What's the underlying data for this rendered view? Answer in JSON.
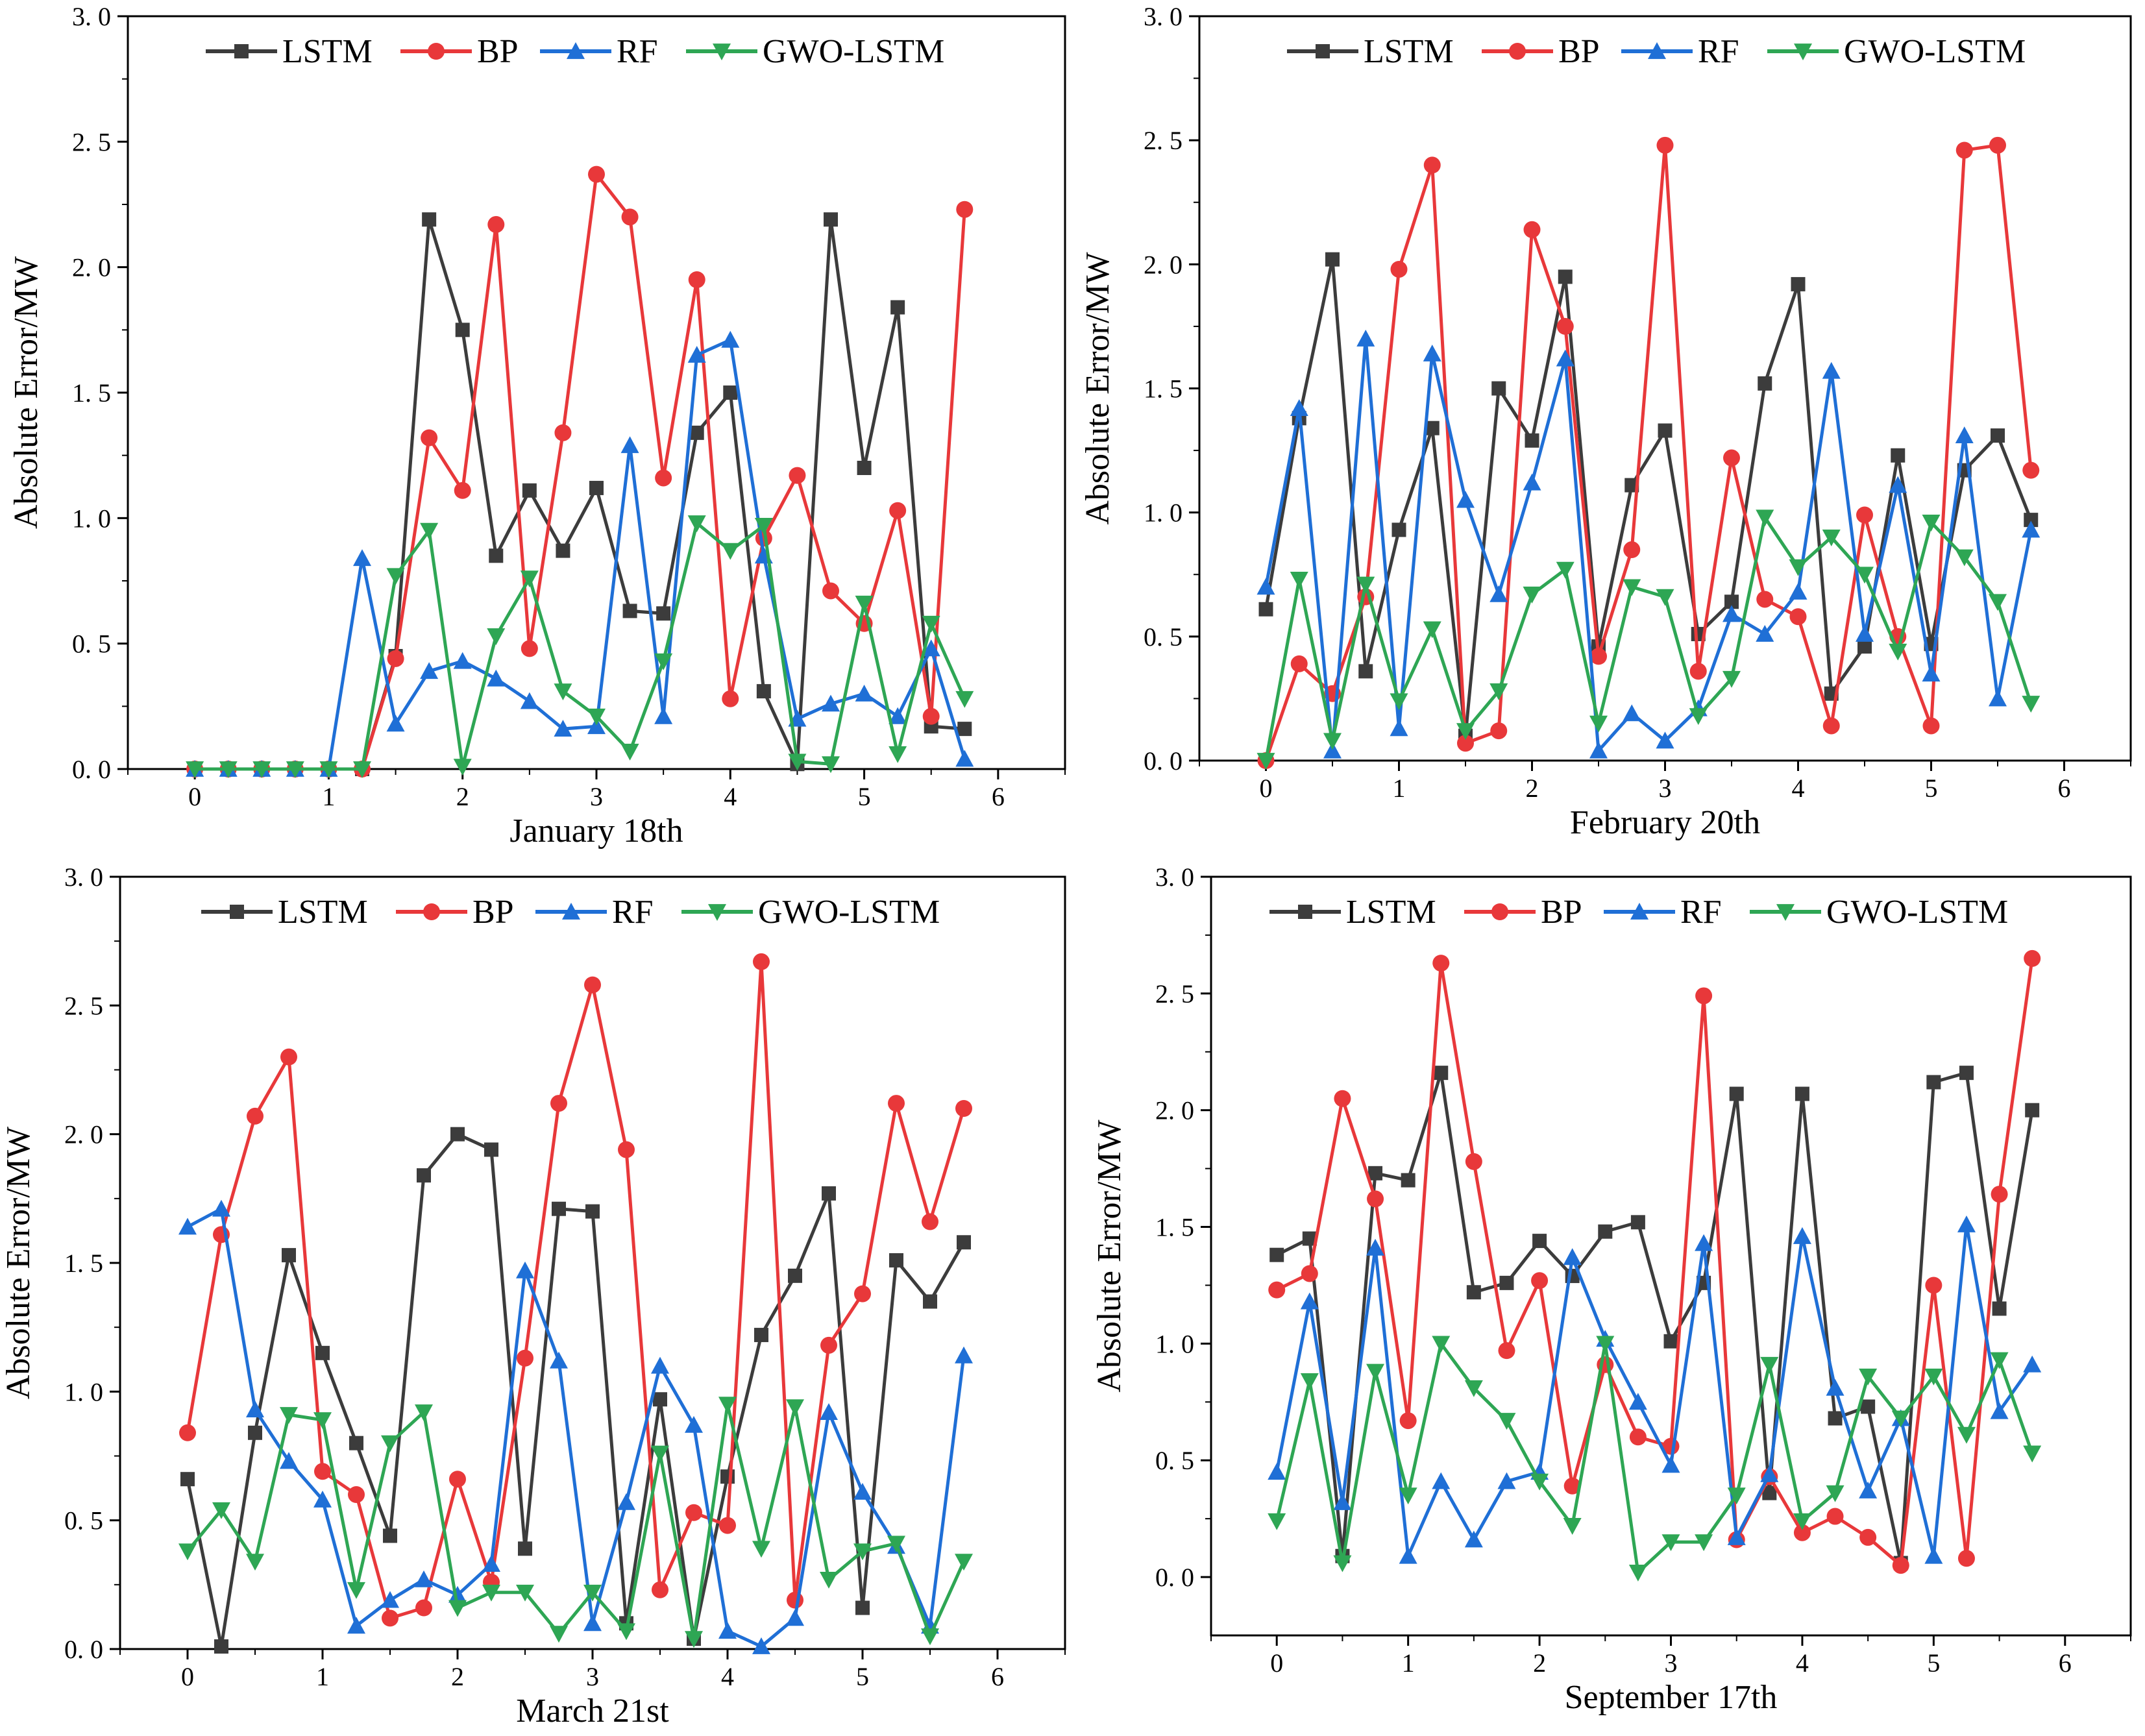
{
  "series_colors": {
    "LSTM": "#3c3c3c",
    "BP": "#e8383a",
    "RF": "#1f6fd6",
    "GWO-LSTM": "#2ea654"
  },
  "chart_data": [
    {
      "type": "line",
      "title": "January 18th",
      "xlabel": "January 18th",
      "ylabel": "Absolute Error/MW",
      "xlim": [
        -0.5,
        6.5
      ],
      "ylim": [
        0,
        3.0
      ],
      "xticks": [
        "0",
        "1",
        "2",
        "3",
        "4",
        "5",
        "6"
      ],
      "yticks": [
        "0. 0",
        "0. 5",
        "1. 0",
        "1. 5",
        "2. 0",
        "2. 5",
        "3. 0"
      ],
      "x": [
        0,
        0.25,
        0.5,
        0.75,
        1.0,
        1.25,
        1.5,
        1.75,
        2.0,
        2.25,
        2.5,
        2.75,
        3.0,
        3.25,
        3.5,
        3.75,
        4.0,
        4.25,
        4.5,
        4.75,
        5.0,
        5.25,
        5.5,
        5.75
      ],
      "legend": "top",
      "series": [
        {
          "name": "LSTM",
          "marker": "square",
          "values": [
            0,
            0,
            0,
            0,
            0,
            0,
            0.45,
            2.19,
            1.75,
            0.85,
            1.11,
            0.87,
            1.12,
            0.63,
            0.62,
            1.34,
            1.5,
            0.31,
            0.02,
            2.19,
            1.2,
            1.84,
            0.17,
            0.16
          ]
        },
        {
          "name": "BP",
          "marker": "circle",
          "values": [
            0,
            0,
            0,
            0,
            0,
            0,
            0.44,
            1.32,
            1.11,
            2.17,
            0.48,
            1.34,
            2.37,
            2.2,
            1.16,
            1.95,
            0.28,
            0.92,
            1.17,
            0.71,
            0.58,
            1.03,
            0.21,
            2.23
          ]
        },
        {
          "name": "RF",
          "marker": "triangle-up",
          "values": [
            0,
            0,
            0,
            0,
            0,
            0.84,
            0.18,
            0.39,
            0.43,
            0.36,
            0.27,
            0.16,
            0.17,
            1.29,
            0.21,
            1.65,
            1.71,
            0.85,
            0.2,
            0.26,
            0.3,
            0.21,
            0.48,
            0.04
          ]
        },
        {
          "name": "GWO-LSTM",
          "marker": "triangle-down",
          "values": [
            0,
            0,
            0,
            0,
            0,
            0,
            0.77,
            0.95,
            0.01,
            0.53,
            0.76,
            0.31,
            0.21,
            0.07,
            0.43,
            0.98,
            0.87,
            0.97,
            0.03,
            0.02,
            0.66,
            0.06,
            0.58,
            0.28
          ]
        }
      ]
    },
    {
      "type": "line",
      "title": "February 20th",
      "xlabel": "February 20th",
      "ylabel": "Absolute Error/MW",
      "xlim": [
        -0.5,
        6.5
      ],
      "ylim": [
        0,
        3.0
      ],
      "xticks": [
        "0",
        "1",
        "2",
        "3",
        "4",
        "5",
        "6"
      ],
      "yticks": [
        "0. 0",
        "0. 5",
        "1. 0",
        "1. 5",
        "2. 0",
        "2. 5",
        "3. 0"
      ],
      "x": [
        0,
        0.25,
        0.5,
        0.75,
        1.0,
        1.25,
        1.5,
        1.75,
        2.0,
        2.25,
        2.5,
        2.75,
        3.0,
        3.25,
        3.5,
        3.75,
        4.0,
        4.25,
        4.5,
        4.75,
        5.0,
        5.25,
        5.5,
        5.75
      ],
      "legend": "top",
      "series": [
        {
          "name": "LSTM",
          "marker": "square",
          "values": [
            0.61,
            1.38,
            2.02,
            0.36,
            0.93,
            1.34,
            0.1,
            1.5,
            1.29,
            1.95,
            0.46,
            1.11,
            1.33,
            0.51,
            0.64,
            1.52,
            1.92,
            0.27,
            0.46,
            1.23,
            0.47,
            1.17,
            1.31,
            0.97
          ]
        },
        {
          "name": "BP",
          "marker": "circle",
          "values": [
            0.0,
            0.39,
            0.27,
            0.66,
            1.98,
            2.4,
            0.07,
            0.12,
            2.14,
            1.75,
            0.42,
            0.85,
            2.48,
            0.36,
            1.22,
            0.65,
            0.58,
            0.14,
            0.99,
            0.5,
            0.14,
            2.46,
            2.48,
            1.17
          ]
        },
        {
          "name": "RF",
          "marker": "triangle-up",
          "values": [
            0.7,
            1.42,
            0.04,
            1.7,
            0.13,
            1.64,
            1.05,
            0.67,
            1.12,
            1.62,
            0.04,
            0.19,
            0.08,
            0.21,
            0.59,
            0.51,
            0.68,
            1.57,
            0.51,
            1.11,
            0.35,
            1.31,
            0.25,
            0.93
          ]
        },
        {
          "name": "GWO-LSTM",
          "marker": "triangle-down",
          "values": [
            0.0,
            0.73,
            0.08,
            0.71,
            0.24,
            0.53,
            0.12,
            0.28,
            0.67,
            0.77,
            0.15,
            0.7,
            0.66,
            0.18,
            0.33,
            0.98,
            0.78,
            0.9,
            0.75,
            0.44,
            0.96,
            0.82,
            0.64,
            0.23
          ]
        }
      ]
    },
    {
      "type": "line",
      "title": "March 21st",
      "xlabel": "March 21st",
      "ylabel": "Absolute Error/MW",
      "xlim": [
        -0.5,
        6.5
      ],
      "ylim": [
        0,
        3.0
      ],
      "xticks": [
        "0",
        "1",
        "2",
        "3",
        "4",
        "5",
        "6"
      ],
      "yticks": [
        "0. 0",
        "0. 5",
        "1. 0",
        "1. 5",
        "2. 0",
        "2. 5",
        "3. 0"
      ],
      "x": [
        0,
        0.25,
        0.5,
        0.75,
        1.0,
        1.25,
        1.5,
        1.75,
        2.0,
        2.25,
        2.5,
        2.75,
        3.0,
        3.25,
        3.5,
        3.75,
        4.0,
        4.25,
        4.5,
        4.75,
        5.0,
        5.25,
        5.5,
        5.75
      ],
      "legend": "top",
      "series": [
        {
          "name": "LSTM",
          "marker": "square",
          "values": [
            0.66,
            0.01,
            0.84,
            1.53,
            1.15,
            0.8,
            0.44,
            1.84,
            2.0,
            1.94,
            0.39,
            1.71,
            1.7,
            0.1,
            0.97,
            0.04,
            0.67,
            1.22,
            1.45,
            1.77,
            0.16,
            1.51,
            1.35,
            1.58
          ]
        },
        {
          "name": "BP",
          "marker": "circle",
          "values": [
            0.84,
            1.61,
            2.07,
            2.3,
            0.69,
            0.6,
            0.12,
            0.16,
            0.66,
            0.26,
            1.13,
            2.12,
            2.58,
            1.94,
            0.23,
            0.53,
            0.48,
            2.67,
            0.19,
            1.18,
            1.38,
            2.12,
            1.66,
            2.1
          ]
        },
        {
          "name": "RF",
          "marker": "triangle-up",
          "values": [
            1.64,
            1.71,
            0.93,
            0.73,
            0.58,
            0.09,
            0.19,
            0.27,
            0.21,
            0.33,
            1.47,
            1.12,
            0.1,
            0.57,
            1.1,
            0.87,
            0.07,
            0.01,
            0.12,
            0.92,
            0.61,
            0.4,
            0.09,
            1.14
          ]
        },
        {
          "name": "GWO-LSTM",
          "marker": "triangle-down",
          "values": [
            0.38,
            0.54,
            0.34,
            0.91,
            0.89,
            0.23,
            0.8,
            0.92,
            0.16,
            0.22,
            0.22,
            0.06,
            0.22,
            0.07,
            0.76,
            0.04,
            0.95,
            0.39,
            0.94,
            0.27,
            0.38,
            0.41,
            0.05,
            0.34
          ]
        }
      ]
    },
    {
      "type": "line",
      "title": "September 17th",
      "xlabel": "September 17th",
      "ylabel": "Absolute Error/MW",
      "xlim": [
        -0.5,
        6.5
      ],
      "ylim": [
        -0.25,
        3.0
      ],
      "xticks": [
        "0",
        "1",
        "2",
        "3",
        "4",
        "5",
        "6"
      ],
      "yticks": [
        "0. 0",
        "0. 5",
        "1. 0",
        "1. 5",
        "2. 0",
        "2. 5",
        "3. 0"
      ],
      "x": [
        0,
        0.25,
        0.5,
        0.75,
        1.0,
        1.25,
        1.5,
        1.75,
        2.0,
        2.25,
        2.5,
        2.75,
        3.0,
        3.25,
        3.5,
        3.75,
        4.0,
        4.25,
        4.5,
        4.75,
        5.0,
        5.25,
        5.5,
        5.75
      ],
      "legend": "top",
      "series": [
        {
          "name": "LSTM",
          "marker": "square",
          "values": [
            1.38,
            1.45,
            0.09,
            1.73,
            1.7,
            2.16,
            1.22,
            1.26,
            1.44,
            1.29,
            1.48,
            1.52,
            1.01,
            1.26,
            2.07,
            0.36,
            2.07,
            0.68,
            0.73,
            0.06,
            2.12,
            2.16,
            1.15,
            2.0
          ]
        },
        {
          "name": "BP",
          "marker": "circle",
          "values": [
            1.23,
            1.3,
            2.05,
            1.62,
            0.67,
            2.63,
            1.78,
            0.97,
            1.27,
            0.39,
            0.91,
            0.6,
            0.56,
            2.49,
            0.16,
            0.43,
            0.19,
            0.26,
            0.17,
            0.05,
            1.25,
            0.08,
            1.64,
            2.65
          ]
        },
        {
          "name": "RF",
          "marker": "triangle-up",
          "values": [
            0.45,
            1.18,
            0.32,
            1.41,
            0.09,
            0.41,
            0.16,
            0.41,
            0.45,
            1.37,
            1.02,
            0.75,
            0.48,
            1.43,
            0.17,
            0.44,
            1.46,
            0.81,
            0.37,
            0.68,
            0.09,
            1.51,
            0.71,
            0.91
          ]
        },
        {
          "name": "GWO-LSTM",
          "marker": "triangle-down",
          "values": [
            0.24,
            0.84,
            0.06,
            0.88,
            0.35,
            1.0,
            0.81,
            0.67,
            0.41,
            0.22,
            1.0,
            0.02,
            0.15,
            0.15,
            0.35,
            0.91,
            0.24,
            0.36,
            0.86,
            0.68,
            0.86,
            0.61,
            0.93,
            0.53
          ]
        }
      ]
    }
  ]
}
